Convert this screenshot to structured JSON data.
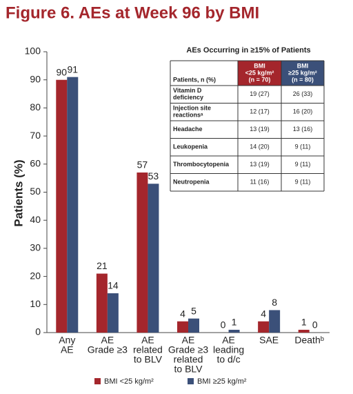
{
  "chart_data": {
    "type": "bar",
    "title": "Figure 6. AEs at Week 96 by BMI",
    "y_label": "Patients (%)",
    "categories": [
      [
        "Any",
        "AE"
      ],
      [
        "AE",
        "Grade ≥3"
      ],
      [
        "AE",
        "related",
        "to BLV"
      ],
      [
        "AE",
        "Grade ≥3",
        "related",
        "to BLV"
      ],
      [
        "AE",
        "leading",
        "to d/c"
      ],
      [
        "SAE"
      ],
      [
        "Deathᵇ"
      ]
    ],
    "series": [
      {
        "name": "BMI <25 kg/m²",
        "color": "#a4262c",
        "values": [
          90,
          21,
          57,
          4,
          0,
          4,
          1
        ]
      },
      {
        "name": "BMI ≥25 kg/m²",
        "color": "#3b5079",
        "values": [
          91,
          14,
          53,
          5,
          1,
          8,
          0
        ]
      }
    ],
    "ylim": [
      0,
      100
    ],
    "yticks": [
      0,
      10,
      20,
      30,
      40,
      50,
      60,
      70,
      80,
      90,
      100
    ],
    "grid": false,
    "legend": "bottom"
  },
  "table": {
    "title": "AEs Occurring in ≥15% of Patients",
    "header": [
      [
        "Patients, n (%)"
      ],
      [
        "BMI",
        "<25 kg/m²",
        "(n = 70)"
      ],
      [
        "BMI",
        "≥25 kg/m²",
        "(n = 80)"
      ]
    ],
    "rows": [
      [
        [
          "Vitamin D",
          "deficiency"
        ],
        "19 (27)",
        "26 (33)"
      ],
      [
        [
          "Injection site",
          "reactionsᵃ"
        ],
        "12 (17)",
        "16 (20)"
      ],
      [
        [
          "Headache"
        ],
        "13 (19)",
        "13 (16)"
      ],
      [
        [
          "Leukopenia"
        ],
        "14 (20)",
        "9 (11)"
      ],
      [
        [
          "Thrombocytopenia"
        ],
        "13 (19)",
        "9 (11)"
      ],
      [
        [
          "Neutropenia"
        ],
        "11 (16)",
        "9 (11)"
      ]
    ]
  }
}
